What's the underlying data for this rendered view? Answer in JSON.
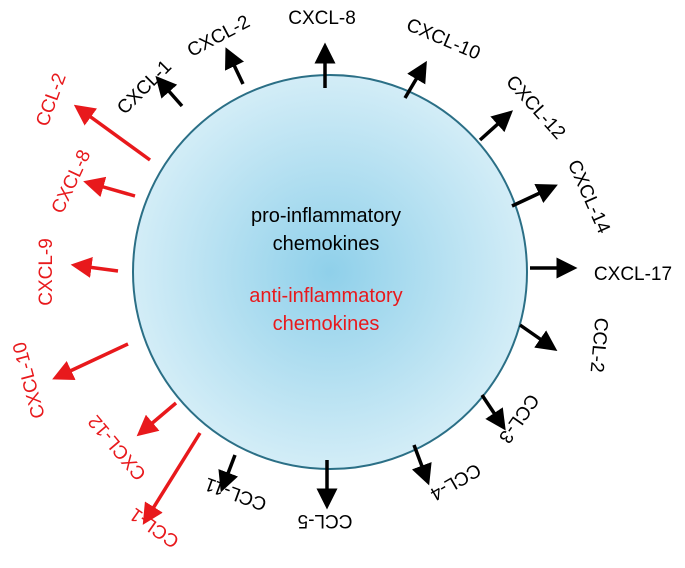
{
  "colors": {
    "pro": "#000000",
    "anti": "#e8191c",
    "cell_fill_center": "#8fd0ea",
    "cell_fill_edge": "#d3edf7",
    "cell_stroke": "#2b6f86"
  },
  "center": {
    "pro_line1": "pro-inflammatory",
    "pro_line2": "chemokines",
    "anti_line1": "anti-inflammatory",
    "anti_line2": "chemokines"
  },
  "pro_chemokines": [
    "CXCL-1",
    "CXCL-2",
    "CXCL-8",
    "CXCL-10",
    "CXCL-12",
    "CXCL-14",
    "CXCL-17",
    "CCL-2",
    "CCL-3",
    "CCL-4",
    "CCL-5",
    "CCL-11"
  ],
  "anti_chemokines": [
    "CCL-2",
    "CXCL-8",
    "CXCL-9",
    "CXCL-10",
    "CXCL-12",
    "CCL-1"
  ]
}
